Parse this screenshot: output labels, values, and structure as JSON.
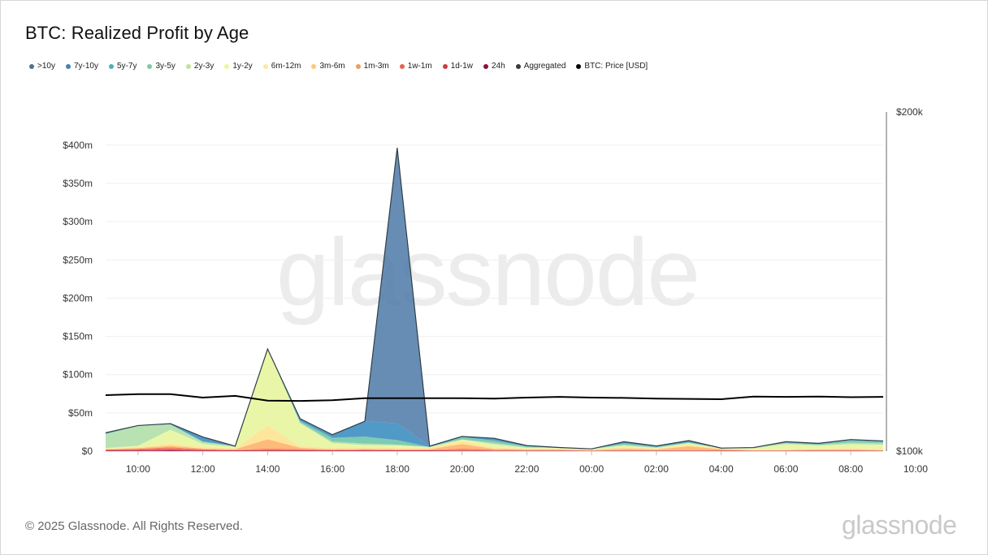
{
  "header": {
    "title": "BTC: Realized Profit by Age"
  },
  "footer": {
    "copyright": "© 2025 Glassnode. All Rights Reserved.",
    "logo": "glassnode"
  },
  "watermark": "glassnode",
  "chart_data": {
    "type": "area",
    "title": "BTC: Realized Profit by Age",
    "stacked": true,
    "legend_position": "top-left",
    "grid": true,
    "x_tick_labels": [
      "10:00",
      "12:00",
      "14:00",
      "16:00",
      "18:00",
      "20:00",
      "22:00",
      "00:00",
      "02:00",
      "04:00",
      "06:00",
      "08:00",
      "10:00"
    ],
    "x": [
      0,
      1,
      2,
      3,
      4,
      5,
      6,
      7,
      8,
      9,
      10,
      11,
      12,
      13,
      14,
      15,
      16,
      17,
      18,
      19,
      20,
      21,
      22,
      23,
      24
    ],
    "y_left": {
      "ticks": [
        "$0",
        "$50m",
        "$100m",
        "$150m",
        "$200m",
        "$250m",
        "$300m",
        "$350m",
        "$400m"
      ],
      "ylim": [
        0,
        420
      ]
    },
    "y_right": {
      "ticks": [
        "$100k",
        "$200k"
      ],
      "ylim": [
        100,
        200
      ]
    },
    "series": [
      {
        "name": "24h",
        "color": "#9e0142",
        "values": [
          0.5,
          0.5,
          1,
          0.5,
          0.5,
          0.5,
          0.5,
          0.5,
          0.5,
          0.5,
          0.5,
          0.3,
          0.3,
          0.3,
          0.3,
          0.2,
          0.3,
          0.3,
          0.3,
          0.2,
          0.2,
          0.2,
          0.2,
          0.2,
          0.2
        ]
      },
      {
        "name": "1d-1w",
        "color": "#d53e4f",
        "values": [
          1,
          1.5,
          2,
          1,
          0.5,
          1,
          1,
          0.5,
          1,
          0.5,
          0.5,
          1,
          0.5,
          0.5,
          0.5,
          0.3,
          0.5,
          0.5,
          0.5,
          0.3,
          0.3,
          0.3,
          0.5,
          0.5,
          0.3
        ]
      },
      {
        "name": "1w-1m",
        "color": "#f46d43",
        "values": [
          0.5,
          1,
          2,
          1,
          0.5,
          2,
          1,
          0.5,
          0.5,
          0.5,
          0.5,
          2,
          1,
          0.5,
          0.5,
          0.2,
          0.5,
          0.5,
          0.5,
          1,
          0.2,
          0.3,
          0.5,
          0.5,
          0.3
        ]
      },
      {
        "name": "1m-3m",
        "color": "#fdae61",
        "values": [
          0.5,
          1,
          2,
          1,
          1,
          12,
          2,
          1,
          1,
          1,
          1,
          6,
          1,
          1,
          1,
          0.5,
          2,
          1,
          5,
          1,
          0.5,
          0.5,
          1,
          1,
          0.5
        ]
      },
      {
        "name": "3m-6m",
        "color": "#fee08b",
        "values": [
          0.5,
          1,
          3,
          2,
          1,
          18,
          2,
          2,
          2,
          2,
          2,
          4,
          2,
          1,
          1,
          0.5,
          2,
          1,
          2,
          0.5,
          0.5,
          1,
          1,
          2,
          1
        ]
      },
      {
        "name": "6m-12m",
        "color": "#ffffbf",
        "values": [
          0,
          0,
          0,
          0,
          0,
          0,
          0,
          0,
          0,
          0,
          0,
          0,
          0,
          0,
          0,
          0,
          0,
          0,
          0,
          0,
          0,
          0,
          0,
          0,
          0
        ]
      },
      {
        "name": "1y-2y",
        "color": "#e6f598",
        "values": [
          1,
          2,
          18,
          4,
          2,
          100,
          30,
          6,
          3,
          3,
          1,
          2,
          4,
          1,
          1,
          0.8,
          2,
          1,
          2,
          0.5,
          2,
          7,
          4,
          5,
          6
        ]
      },
      {
        "name": "2y-3y",
        "color": "#abdda4",
        "values": [
          18,
          26,
          7,
          3,
          1,
          0,
          1,
          2,
          2,
          1,
          0,
          0,
          2,
          1,
          0.5,
          0.5,
          1,
          0.5,
          0.5,
          0.5,
          1,
          1,
          1,
          2,
          2
        ]
      },
      {
        "name": "3y-5y",
        "color": "#66c2a5",
        "values": [
          1,
          0.5,
          0,
          0,
          0,
          0,
          2,
          5,
          9,
          6,
          0,
          3,
          3,
          1,
          0,
          0,
          2,
          1,
          1,
          0,
          0,
          1,
          1,
          3,
          2
        ]
      },
      {
        "name": "5y-7y",
        "color": "#3288bd",
        "values": [
          1,
          0,
          1,
          6,
          0,
          0,
          3,
          4,
          20,
          22,
          1,
          1,
          3,
          1,
          0,
          0,
          2,
          1,
          2,
          0,
          0,
          1,
          1,
          1,
          1
        ]
      },
      {
        "name": "7y-10y",
        "color": "#5e4fa2",
        "values": [
          0,
          0,
          0,
          0,
          0,
          0,
          0,
          0,
          0,
          0,
          0,
          0,
          0,
          0,
          0,
          0,
          0,
          0,
          0,
          0,
          0,
          0,
          0,
          0,
          0
        ]
      },
      {
        "name": ">10y",
        "color": "#4e79a7",
        "values": [
          0,
          0,
          0,
          0,
          0,
          0,
          0,
          0,
          0,
          360,
          0,
          0,
          0,
          0,
          0,
          0,
          0,
          0,
          0,
          0,
          0,
          0,
          0,
          0,
          0
        ]
      }
    ],
    "legend": [
      {
        "name": ">10y",
        "color": "#50708f"
      },
      {
        "name": "7y-10y",
        "color": "#4a7fb5"
      },
      {
        "name": "5y-7y",
        "color": "#4ab0b0"
      },
      {
        "name": "3y-5y",
        "color": "#7fc9a0"
      },
      {
        "name": "2y-3y",
        "color": "#bfe29d"
      },
      {
        "name": "1y-2y",
        "color": "#eef59e"
      },
      {
        "name": "6m-12m",
        "color": "#fde9a4"
      },
      {
        "name": "3m-6m",
        "color": "#fbc97a"
      },
      {
        "name": "1m-3m",
        "color": "#f19a64"
      },
      {
        "name": "1w-1m",
        "color": "#e2654e"
      },
      {
        "name": "1d-1w",
        "color": "#d23b3b"
      },
      {
        "name": "24h",
        "color": "#8e1030"
      },
      {
        "name": "Aggregated",
        "color": "#3a3a3a"
      },
      {
        "name": "BTC: Price [USD]",
        "color": "#000000"
      }
    ],
    "aggregated": {
      "name": "Aggregated",
      "color": "#2f3e46"
    },
    "price": {
      "name": "BTC: Price [USD]",
      "color": "#000000",
      "values": [
        116.5,
        116.8,
        116.8,
        115.8,
        116.3,
        114.9,
        114.8,
        115.0,
        115.6,
        115.6,
        115.6,
        115.6,
        115.5,
        115.8,
        116.0,
        115.8,
        115.7,
        115.5,
        115.4,
        115.3,
        116.1,
        116.0,
        116.1,
        115.9,
        116.0
      ]
    }
  }
}
